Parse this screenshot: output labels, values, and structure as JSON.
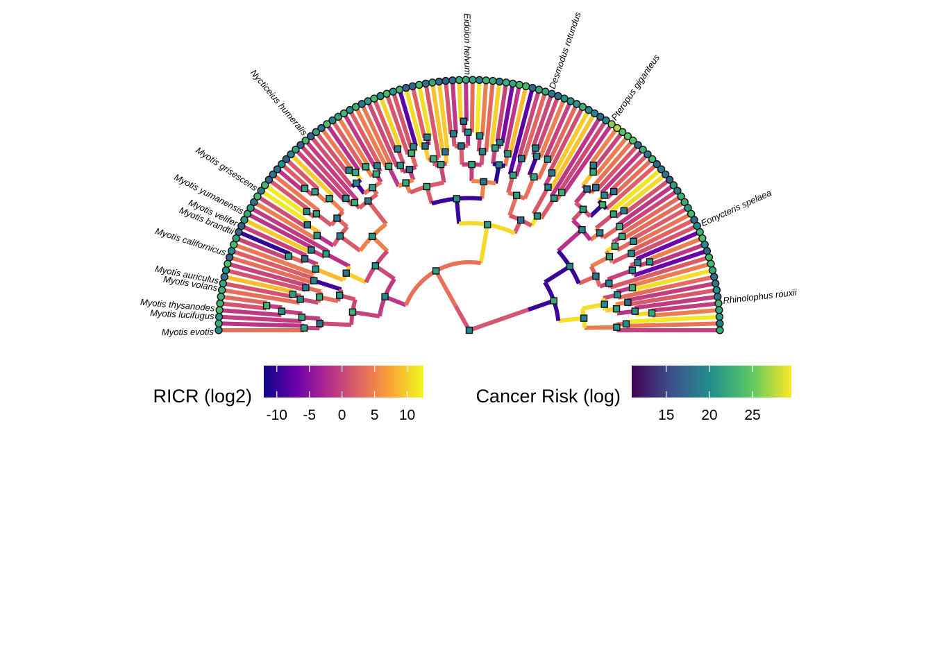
{
  "tip_labels": [
    {
      "text": "Myotis evotis",
      "angle": 180.5
    },
    {
      "text": "Myotis lucifugus",
      "angle": 177.0
    },
    {
      "text": "Myotis thysanodes",
      "angle": 175.2
    },
    {
      "text": "Myotis volans",
      "angle": 170.6
    },
    {
      "text": "Myotis auriculus",
      "angle": 169.0
    },
    {
      "text": "Myotis californicus",
      "angle": 162.5
    },
    {
      "text": "Myotis brandtii",
      "angle": 157.5
    },
    {
      "text": "Myotis velifer",
      "angle": 155.5
    },
    {
      "text": "Myotis yumanensis",
      "angle": 152.5
    },
    {
      "text": "Myotis grisescens",
      "angle": 146.5
    },
    {
      "text": "Nycticeius humeralis",
      "angle": 130.0
    },
    {
      "text": "Eidolon helvum",
      "angle": 90.5
    },
    {
      "text": "Desmodus rotundus",
      "angle": 71.0
    },
    {
      "text": "Pteropus giganteus",
      "angle": 55.5
    },
    {
      "text": "Eonycteris spelaea",
      "angle": 24.5
    },
    {
      "text": "Rhinolophus rouxii",
      "angle": 6.5
    }
  ],
  "legends": {
    "ricr": {
      "title": "RICR (log2)",
      "ticks": [
        "-10",
        "-5",
        "0",
        "5",
        "10"
      ],
      "tick_values": [
        -10,
        -5,
        0,
        5,
        10
      ],
      "range": [
        -12,
        12.5
      ],
      "colors": [
        "#0d0887",
        "#6a00a8",
        "#b12a90",
        "#e16462",
        "#fca636",
        "#f0f921"
      ]
    },
    "cancer_risk": {
      "title": "Cancer Risk (log)",
      "ticks": [
        "15",
        "20",
        "25"
      ],
      "tick_values": [
        15,
        20,
        25
      ],
      "range": [
        11,
        29.5
      ],
      "colors": [
        "#440154",
        "#3b528b",
        "#21908c",
        "#5dc863",
        "#fde725"
      ]
    }
  }
}
